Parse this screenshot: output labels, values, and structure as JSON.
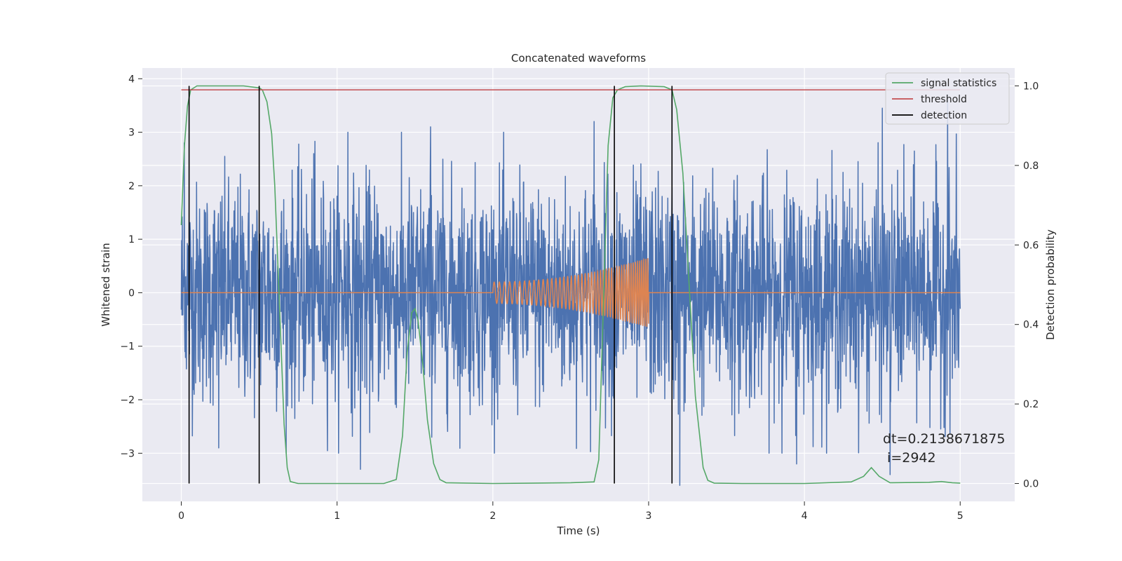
{
  "chart_data": {
    "type": "line",
    "title": "Concatenated waveforms",
    "xlabel": "Time (s)",
    "ylabel": "Whitened strain",
    "y2label": "Detection probability",
    "xlim": [
      -0.25,
      5.35
    ],
    "ylim": [
      -3.9,
      4.2
    ],
    "y2lim": [
      -0.045,
      1.045
    ],
    "xticks": [
      0,
      1,
      2,
      3,
      4,
      5
    ],
    "yticks": [
      -3,
      -2,
      -1,
      0,
      1,
      2,
      3,
      4
    ],
    "y2ticks": [
      0.0,
      0.2,
      0.4,
      0.6,
      0.8,
      1.0
    ],
    "grid": true,
    "legend_position": "top-right",
    "colors": {
      "strain": "#4c72b0",
      "injection": "#dd8452",
      "signal_statistics": "#55a868",
      "threshold": "#c44e52",
      "detection": "#000000",
      "background": "#eaeaf2",
      "grid": "#ffffff"
    },
    "strain": {
      "t_start": 0,
      "t_end": 5,
      "typical_amplitude": 1.2,
      "peak_values": [
        {
          "t": 0.02,
          "y": 2.8
        },
        {
          "t": 0.85,
          "y": 2.6
        },
        {
          "t": 1.07,
          "y": 3.0
        },
        {
          "t": 1.6,
          "y": 3.1
        },
        {
          "t": 2.65,
          "y": 3.2
        },
        {
          "t": 4.5,
          "y": 3.45
        },
        {
          "t": 4.92,
          "y": 3.7
        },
        {
          "t": 0.24,
          "y": -2.9
        },
        {
          "t": 1.15,
          "y": -3.3
        },
        {
          "t": 3.2,
          "y": -3.6
        },
        {
          "t": 3.95,
          "y": -3.2
        },
        {
          "t": 4.55,
          "y": -3.4
        }
      ]
    },
    "injection": {
      "t_start": 2.0,
      "t_end": 3.0,
      "amp_start": 0.2,
      "amp_end": 0.65,
      "freq_start": 30,
      "freq_end": 80
    },
    "signal_statistics": {
      "x": [
        0,
        0.02,
        0.04,
        0.06,
        0.1,
        0.2,
        0.3,
        0.4,
        0.5,
        0.52,
        0.55,
        0.58,
        0.6,
        0.63,
        0.66,
        0.68,
        0.7,
        0.75,
        1.0,
        1.3,
        1.38,
        1.42,
        1.45,
        1.48,
        1.5,
        1.52,
        1.55,
        1.58,
        1.62,
        1.66,
        1.7,
        2.0,
        2.5,
        2.65,
        2.68,
        2.71,
        2.74,
        2.77,
        2.8,
        2.85,
        2.95,
        3.1,
        3.15,
        3.18,
        3.22,
        3.26,
        3.3,
        3.35,
        3.38,
        3.42,
        3.6,
        4.0,
        4.3,
        4.38,
        4.43,
        4.48,
        4.55,
        4.8,
        4.88,
        4.95,
        5.0
      ],
      "y": [
        0.65,
        0.85,
        0.95,
        0.99,
        1.0,
        1.0,
        1.0,
        1.0,
        0.995,
        0.99,
        0.96,
        0.88,
        0.75,
        0.45,
        0.15,
        0.04,
        0.005,
        0.0,
        0.0,
        0.0,
        0.01,
        0.12,
        0.33,
        0.43,
        0.44,
        0.41,
        0.3,
        0.16,
        0.05,
        0.01,
        0.002,
        0.0,
        0.002,
        0.004,
        0.06,
        0.45,
        0.85,
        0.97,
        0.99,
        0.998,
        1.0,
        0.998,
        0.99,
        0.94,
        0.78,
        0.5,
        0.22,
        0.04,
        0.008,
        0.001,
        0.0,
        0.0,
        0.004,
        0.018,
        0.04,
        0.018,
        0.002,
        0.003,
        0.005,
        0.002,
        0.001
      ]
    },
    "threshold": {
      "value": 0.99,
      "x_start": 0,
      "x_end": 5
    },
    "detections": [
      0.05,
      0.5,
      2.78,
      3.15
    ],
    "legend": [
      {
        "label": "signal statistics",
        "key": "signal_statistics"
      },
      {
        "label": "threshold",
        "key": "threshold"
      },
      {
        "label": "detection",
        "key": "detection"
      }
    ],
    "annotation": {
      "line1": "dt=0.2138671875",
      "line2": " i=2942"
    }
  }
}
